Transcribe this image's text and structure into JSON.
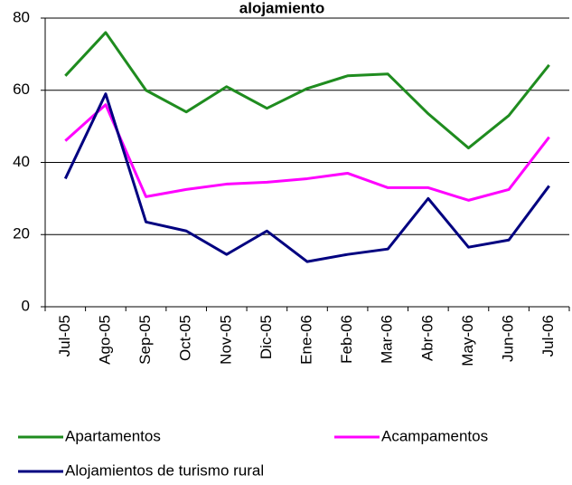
{
  "chart_data": {
    "type": "line",
    "title": "alojamiento",
    "categories": [
      "Jul-05",
      "Ago-05",
      "Sep-05",
      "Oct-05",
      "Nov-05",
      "Dic-05",
      "Ene-06",
      "Feb-06",
      "Mar-06",
      "Abr-06",
      "May-06",
      "Jun-06",
      "Jul-06"
    ],
    "series": [
      {
        "name": "Apartamentos",
        "color": "#1f8c1f",
        "values": [
          64,
          76,
          60,
          54,
          61,
          55,
          60.5,
          64,
          64.5,
          53.5,
          44,
          53,
          67
        ]
      },
      {
        "name": "Acampamentos",
        "color": "#ff00ff",
        "values": [
          46,
          56,
          30.5,
          32.5,
          34,
          34.5,
          35.5,
          37,
          33,
          33,
          29.5,
          32.5,
          47
        ]
      },
      {
        "name": "Alojamientos de turismo rural",
        "color": "#000080",
        "values": [
          35.5,
          59,
          23.5,
          21,
          14.5,
          21,
          12.5,
          14.5,
          16,
          30,
          16.5,
          18.5,
          33.5
        ]
      }
    ],
    "ylim": [
      0,
      80
    ],
    "yticks": [
      0,
      20,
      40,
      60,
      80
    ],
    "grid": true,
    "legend": "bottom"
  }
}
